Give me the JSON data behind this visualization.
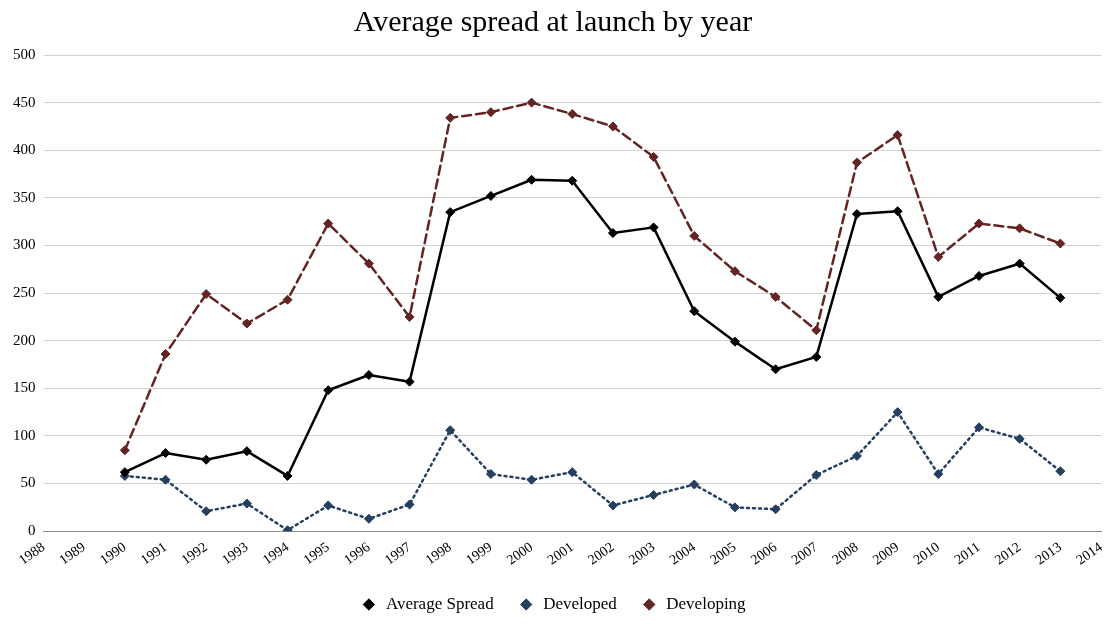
{
  "chart_data": {
    "type": "line",
    "title": "Average spread at launch by year",
    "categories": [
      "1988",
      "1989",
      "1990",
      "1991",
      "1992",
      "1993",
      "1994",
      "1995",
      "1996",
      "1997",
      "1998",
      "1999",
      "2000",
      "2001",
      "2002",
      "2003",
      "2004",
      "2005",
      "2006",
      "2007",
      "2008",
      "2009",
      "2010",
      "2011",
      "2012",
      "2013",
      "2014"
    ],
    "series": [
      {
        "name": "Average Spread",
        "color": "#000000",
        "line_style": "solid",
        "values": [
          null,
          null,
          62,
          82,
          75,
          84,
          58,
          148,
          164,
          157,
          335,
          352,
          369,
          368,
          313,
          319,
          231,
          199,
          170,
          183,
          333,
          336,
          246,
          268,
          281,
          245,
          null
        ]
      },
      {
        "name": "Developed",
        "color": "#243f60",
        "line_style": "dotted",
        "values": [
          null,
          null,
          58,
          54,
          21,
          29,
          1,
          27,
          13,
          28,
          106,
          60,
          54,
          62,
          27,
          38,
          49,
          25,
          23,
          59,
          79,
          125,
          60,
          109,
          97,
          63,
          null
        ]
      },
      {
        "name": "Developing",
        "color": "#632423",
        "line_style": "dashed",
        "values": [
          null,
          null,
          85,
          186,
          249,
          218,
          243,
          323,
          281,
          225,
          434,
          440,
          450,
          438,
          425,
          393,
          310,
          273,
          246,
          211,
          387,
          416,
          288,
          323,
          318,
          302,
          null
        ]
      }
    ],
    "ylim": [
      0,
      500
    ],
    "yticks": [
      0,
      50,
      100,
      150,
      200,
      250,
      300,
      350,
      400,
      450,
      500
    ],
    "grid": "y",
    "legend": "bottom",
    "marker": "diamond"
  }
}
